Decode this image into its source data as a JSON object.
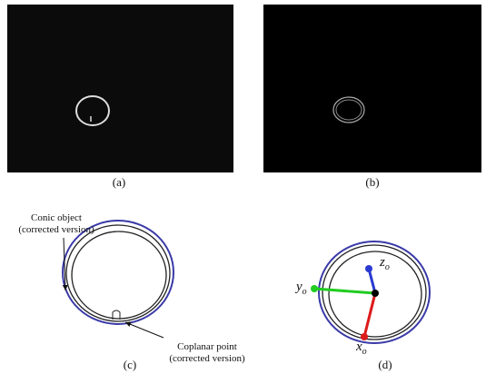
{
  "panels": [
    {
      "caption": "(a)"
    },
    {
      "caption": "(b)"
    },
    {
      "caption": "(c)",
      "annotations": [
        {
          "lines": [
            "Conic object",
            "(corrected version)"
          ]
        },
        {
          "lines": [
            "Coplanar point",
            "(corrected version)"
          ]
        }
      ]
    },
    {
      "caption": "(d)",
      "axes": [
        {
          "symbol": "z",
          "subscript": "o"
        },
        {
          "symbol": "y",
          "subscript": "o"
        },
        {
          "symbol": "x",
          "subscript": "o"
        }
      ]
    }
  ]
}
